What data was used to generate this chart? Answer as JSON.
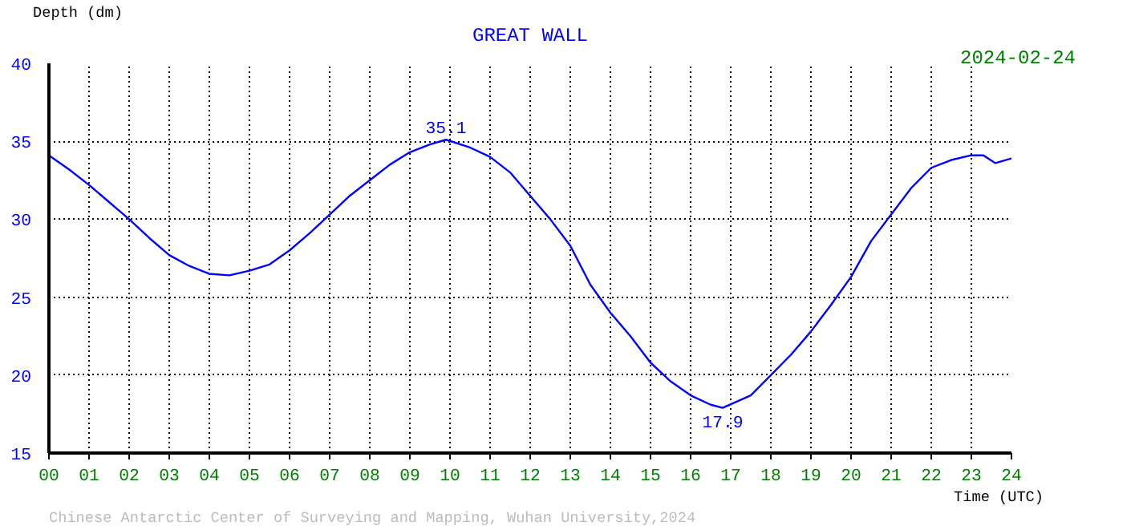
{
  "chart_data": {
    "type": "line",
    "title": "GREAT WALL",
    "xlabel": "Time (UTC)",
    "ylabel": "Depth (dm)",
    "x": [
      0,
      0.5,
      1,
      1.5,
      2,
      2.5,
      3,
      3.5,
      4,
      4.5,
      5,
      5.5,
      6,
      6.5,
      7,
      7.5,
      8,
      8.5,
      9,
      9.5,
      9.9,
      10.5,
      11,
      11.5,
      12,
      12.5,
      13,
      13.5,
      14,
      14.5,
      15,
      15.5,
      16,
      16.5,
      16.8,
      17.5,
      18,
      18.5,
      19,
      19.5,
      20,
      20.5,
      21,
      21.5,
      22,
      22.5,
      23,
      23.3,
      23.6,
      24
    ],
    "series": [
      {
        "color": "#0000ff",
        "values": [
          34.1,
          33.2,
          32.2,
          31.1,
          30.0,
          28.8,
          27.7,
          27.0,
          26.5,
          26.4,
          26.7,
          27.1,
          28.0,
          29.1,
          30.3,
          31.5,
          32.5,
          33.5,
          34.3,
          34.8,
          35.1,
          34.6,
          34.0,
          33.0,
          31.5,
          30.0,
          28.3,
          25.8,
          24.0,
          22.5,
          20.8,
          19.6,
          18.7,
          18.1,
          17.9,
          18.7,
          20.0,
          21.3,
          22.8,
          24.5,
          26.3,
          28.6,
          30.3,
          32.0,
          33.3,
          33.8,
          34.1,
          34.1,
          33.6,
          33.9
        ]
      }
    ],
    "xlim": [
      0,
      24
    ],
    "ylim": [
      15,
      40
    ],
    "xticks": [
      {
        "value": 0,
        "label": "00"
      },
      {
        "value": 1,
        "label": "01"
      },
      {
        "value": 2,
        "label": "02"
      },
      {
        "value": 3,
        "label": "03"
      },
      {
        "value": 4,
        "label": "04"
      },
      {
        "value": 5,
        "label": "05"
      },
      {
        "value": 6,
        "label": "06"
      },
      {
        "value": 7,
        "label": "07"
      },
      {
        "value": 8,
        "label": "08"
      },
      {
        "value": 9,
        "label": "09"
      },
      10,
      11,
      12,
      13,
      14,
      15,
      16,
      17,
      18,
      19,
      20,
      21,
      22,
      23,
      24
    ],
    "yticks": [
      15,
      20,
      25,
      30,
      35,
      40
    ],
    "grid": true,
    "line_style": "solid",
    "marker": "none",
    "annotations": [
      {
        "text": "35.1",
        "x": 9.9,
        "y": 35.1
      },
      {
        "text": "17.9",
        "x": 16.8,
        "y": 17.9
      },
      "2024-02-24",
      "Chinese Antarctic Center of Surveying and Mapping, Wuhan University,2024"
    ]
  }
}
